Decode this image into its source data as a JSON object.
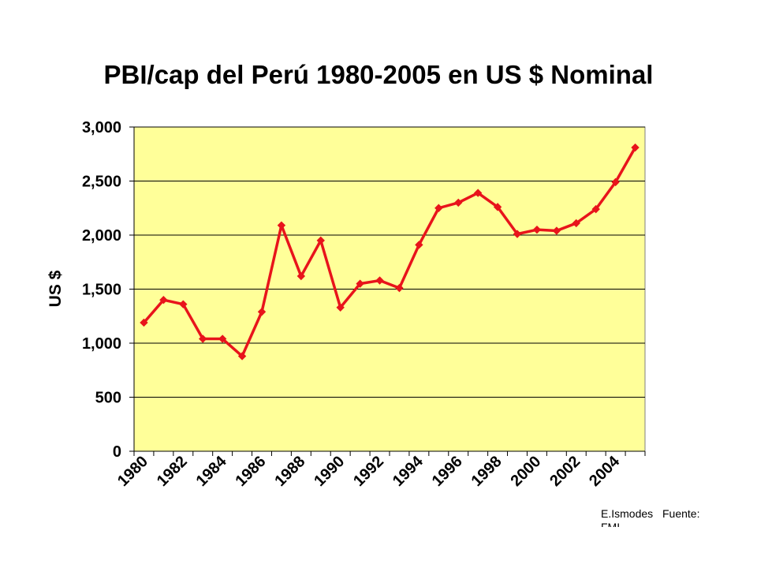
{
  "chart_data": {
    "type": "line",
    "title": "PBI/cap del Perú 1980-2005 en US $ Nominal",
    "xlabel": "",
    "ylabel": "US $",
    "x": [
      1980,
      1981,
      1982,
      1983,
      1984,
      1985,
      1986,
      1987,
      1988,
      1989,
      1990,
      1991,
      1992,
      1993,
      1994,
      1995,
      1996,
      1997,
      1998,
      1999,
      2000,
      2001,
      2002,
      2003,
      2004,
      2005
    ],
    "x_tick_labels": [
      "1980",
      "1982",
      "1984",
      "1986",
      "1988",
      "1990",
      "1992",
      "1994",
      "1996",
      "1998",
      "2000",
      "2002",
      "2004"
    ],
    "ylim": [
      0,
      3000
    ],
    "y_ticks": [
      0,
      500,
      1000,
      1500,
      2000,
      2500,
      3000
    ],
    "y_tick_labels": [
      "0",
      "500",
      "1,000",
      "1,500",
      "2,000",
      "2,500",
      "3,000"
    ],
    "grid": true,
    "legend": "none",
    "series": [
      {
        "values": [
          1190,
          1400,
          1360,
          1040,
          1040,
          880,
          1290,
          2090,
          1620,
          1950,
          1330,
          1550,
          1580,
          1510,
          1910,
          2250,
          2300,
          2390,
          2260,
          2010,
          2050,
          2040,
          2110,
          2240,
          2490,
          2810
        ],
        "color": "#e8141b"
      }
    ],
    "plot_background": "#ffff99",
    "credit": {
      "left": "E.Ismodes",
      "right": "Fuente:",
      "second_line": "FMI"
    }
  }
}
